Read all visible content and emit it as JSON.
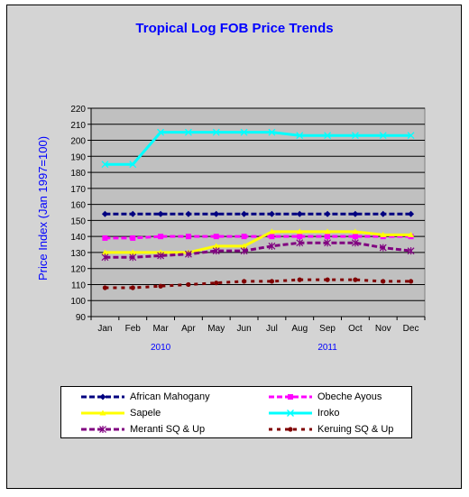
{
  "chart_data": {
    "type": "line",
    "title": "Tropical Log FOB Price Trends",
    "ylabel": "Price Index (Jan 1997=100)",
    "xlabel": "",
    "ylim": [
      90,
      220
    ],
    "ytick_step": 10,
    "grid": true,
    "legend_position": "bottom",
    "categories": [
      "Jan",
      "Feb",
      "Mar",
      "Apr",
      "May",
      "Jun",
      "Jul",
      "Aug",
      "Sep",
      "Oct",
      "Nov",
      "Dec"
    ],
    "year_labels": [
      {
        "label": "2010",
        "at_category": "Mar"
      },
      {
        "label": "2011",
        "at_category": "Sep"
      }
    ],
    "series": [
      {
        "name": "African Mahogany",
        "color": "#000080",
        "dash": "6,3",
        "marker": "diamond",
        "values": [
          154,
          154,
          154,
          154,
          154,
          154,
          154,
          154,
          154,
          154,
          154,
          154
        ]
      },
      {
        "name": "Obeche Ayous",
        "color": "#ff00ff",
        "dash": "6,3",
        "marker": "square",
        "values": [
          139,
          139,
          140,
          140,
          140,
          140,
          140,
          140,
          140,
          140,
          140,
          140
        ]
      },
      {
        "name": "Sapele",
        "color": "#ffff00",
        "dash": "",
        "marker": "triangle",
        "values": [
          130,
          130,
          130,
          130,
          134,
          134,
          143,
          143,
          143,
          143,
          141,
          141
        ]
      },
      {
        "name": "Iroko",
        "color": "#00ffff",
        "dash": "",
        "marker": "x",
        "values": [
          185,
          185,
          205,
          205,
          205,
          205,
          205,
          203,
          203,
          203,
          203,
          203
        ]
      },
      {
        "name": "Meranti SQ & Up",
        "color": "#800080",
        "dash": "6,3",
        "marker": "star",
        "values": [
          127,
          127,
          128,
          129,
          131,
          131,
          134,
          136,
          136,
          136,
          133,
          131
        ]
      },
      {
        "name": "Keruing SQ & Up",
        "color": "#800000",
        "dash": "4,5",
        "marker": "circle",
        "values": [
          108,
          108,
          109,
          110,
          111,
          112,
          112,
          113,
          113,
          113,
          112,
          112
        ]
      }
    ]
  }
}
